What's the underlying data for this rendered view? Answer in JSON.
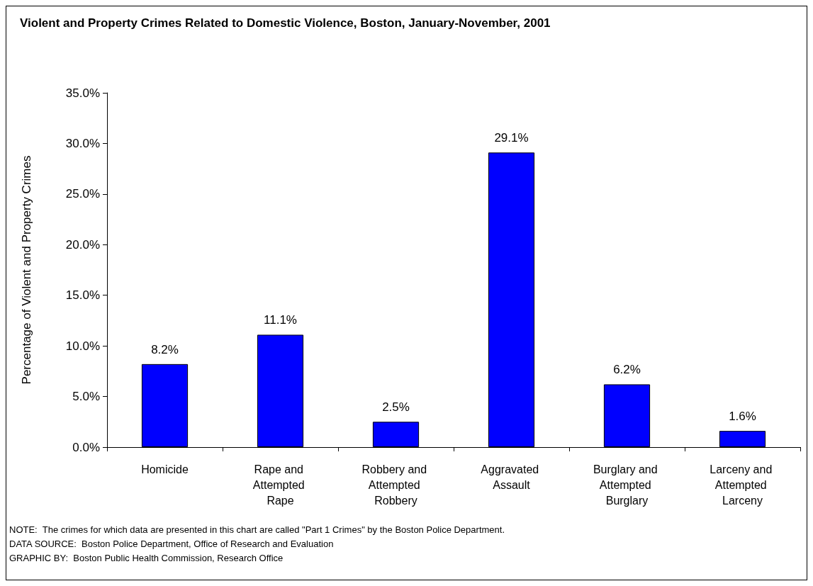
{
  "chart_data": {
    "type": "bar",
    "title": "Violent and Property Crimes Related to Domestic Violence, Boston, January-November, 2001",
    "ylabel": "Percentage of Violent and Property Crimes",
    "categories": [
      "Homicide",
      "Rape and Attempted Rape",
      "Robbery and Attempted Robbery",
      "Aggravated Assault",
      "Burglary and Attempted Burglary",
      "Larceny and Attempted Larceny"
    ],
    "values": [
      8.2,
      11.1,
      2.5,
      29.1,
      6.2,
      1.6
    ],
    "value_labels": [
      "8.2%",
      "11.1%",
      "2.5%",
      "29.1%",
      "6.2%",
      "1.6%"
    ],
    "color": "#0000ff",
    "ylim": [
      0,
      35
    ],
    "yticks": [
      {
        "value": 0,
        "label": "0.0%"
      },
      {
        "value": 5,
        "label": "5.0%"
      },
      {
        "value": 10,
        "label": "10.0%"
      },
      {
        "value": 15,
        "label": "15.0%"
      },
      {
        "value": 20,
        "label": "20.0%"
      },
      {
        "value": 25,
        "label": "25.0%"
      },
      {
        "value": 30,
        "label": "30.0%"
      },
      {
        "value": 35,
        "label": "35.0%"
      }
    ],
    "grid": false,
    "annotations": [
      "NOTE:  The crimes for which data are presented in this chart are called \"Part 1 Crimes\" by the Boston Police Department.",
      "DATA SOURCE:  Boston Police Department, Office of Research and Evaluation",
      "GRAPHIC BY:  Boston Public Health Commission, Research Office"
    ]
  }
}
